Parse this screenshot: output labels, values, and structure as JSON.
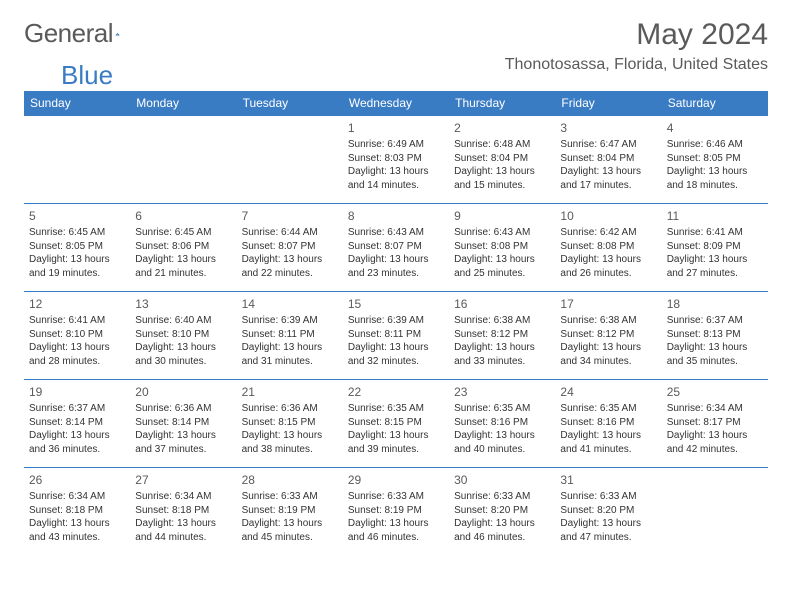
{
  "brand": {
    "part1": "General",
    "part2": "Blue"
  },
  "title": "May 2024",
  "location": "Thonotosassa, Florida, United States",
  "colors": {
    "header_bg": "#3a7cc4",
    "header_text": "#ffffff",
    "text": "#333333",
    "muted": "#5a5a5a",
    "border": "#3a7cc4",
    "background": "#ffffff"
  },
  "day_headers": [
    "Sunday",
    "Monday",
    "Tuesday",
    "Wednesday",
    "Thursday",
    "Friday",
    "Saturday"
  ],
  "weeks": [
    [
      null,
      null,
      null,
      {
        "n": "1",
        "sr": "6:49 AM",
        "ss": "8:03 PM",
        "dl": "13 hours and 14 minutes."
      },
      {
        "n": "2",
        "sr": "6:48 AM",
        "ss": "8:04 PM",
        "dl": "13 hours and 15 minutes."
      },
      {
        "n": "3",
        "sr": "6:47 AM",
        "ss": "8:04 PM",
        "dl": "13 hours and 17 minutes."
      },
      {
        "n": "4",
        "sr": "6:46 AM",
        "ss": "8:05 PM",
        "dl": "13 hours and 18 minutes."
      }
    ],
    [
      {
        "n": "5",
        "sr": "6:45 AM",
        "ss": "8:05 PM",
        "dl": "13 hours and 19 minutes."
      },
      {
        "n": "6",
        "sr": "6:45 AM",
        "ss": "8:06 PM",
        "dl": "13 hours and 21 minutes."
      },
      {
        "n": "7",
        "sr": "6:44 AM",
        "ss": "8:07 PM",
        "dl": "13 hours and 22 minutes."
      },
      {
        "n": "8",
        "sr": "6:43 AM",
        "ss": "8:07 PM",
        "dl": "13 hours and 23 minutes."
      },
      {
        "n": "9",
        "sr": "6:43 AM",
        "ss": "8:08 PM",
        "dl": "13 hours and 25 minutes."
      },
      {
        "n": "10",
        "sr": "6:42 AM",
        "ss": "8:08 PM",
        "dl": "13 hours and 26 minutes."
      },
      {
        "n": "11",
        "sr": "6:41 AM",
        "ss": "8:09 PM",
        "dl": "13 hours and 27 minutes."
      }
    ],
    [
      {
        "n": "12",
        "sr": "6:41 AM",
        "ss": "8:10 PM",
        "dl": "13 hours and 28 minutes."
      },
      {
        "n": "13",
        "sr": "6:40 AM",
        "ss": "8:10 PM",
        "dl": "13 hours and 30 minutes."
      },
      {
        "n": "14",
        "sr": "6:39 AM",
        "ss": "8:11 PM",
        "dl": "13 hours and 31 minutes."
      },
      {
        "n": "15",
        "sr": "6:39 AM",
        "ss": "8:11 PM",
        "dl": "13 hours and 32 minutes."
      },
      {
        "n": "16",
        "sr": "6:38 AM",
        "ss": "8:12 PM",
        "dl": "13 hours and 33 minutes."
      },
      {
        "n": "17",
        "sr": "6:38 AM",
        "ss": "8:12 PM",
        "dl": "13 hours and 34 minutes."
      },
      {
        "n": "18",
        "sr": "6:37 AM",
        "ss": "8:13 PM",
        "dl": "13 hours and 35 minutes."
      }
    ],
    [
      {
        "n": "19",
        "sr": "6:37 AM",
        "ss": "8:14 PM",
        "dl": "13 hours and 36 minutes."
      },
      {
        "n": "20",
        "sr": "6:36 AM",
        "ss": "8:14 PM",
        "dl": "13 hours and 37 minutes."
      },
      {
        "n": "21",
        "sr": "6:36 AM",
        "ss": "8:15 PM",
        "dl": "13 hours and 38 minutes."
      },
      {
        "n": "22",
        "sr": "6:35 AM",
        "ss": "8:15 PM",
        "dl": "13 hours and 39 minutes."
      },
      {
        "n": "23",
        "sr": "6:35 AM",
        "ss": "8:16 PM",
        "dl": "13 hours and 40 minutes."
      },
      {
        "n": "24",
        "sr": "6:35 AM",
        "ss": "8:16 PM",
        "dl": "13 hours and 41 minutes."
      },
      {
        "n": "25",
        "sr": "6:34 AM",
        "ss": "8:17 PM",
        "dl": "13 hours and 42 minutes."
      }
    ],
    [
      {
        "n": "26",
        "sr": "6:34 AM",
        "ss": "8:18 PM",
        "dl": "13 hours and 43 minutes."
      },
      {
        "n": "27",
        "sr": "6:34 AM",
        "ss": "8:18 PM",
        "dl": "13 hours and 44 minutes."
      },
      {
        "n": "28",
        "sr": "6:33 AM",
        "ss": "8:19 PM",
        "dl": "13 hours and 45 minutes."
      },
      {
        "n": "29",
        "sr": "6:33 AM",
        "ss": "8:19 PM",
        "dl": "13 hours and 46 minutes."
      },
      {
        "n": "30",
        "sr": "6:33 AM",
        "ss": "8:20 PM",
        "dl": "13 hours and 46 minutes."
      },
      {
        "n": "31",
        "sr": "6:33 AM",
        "ss": "8:20 PM",
        "dl": "13 hours and 47 minutes."
      },
      null
    ]
  ],
  "labels": {
    "sunrise": "Sunrise:",
    "sunset": "Sunset:",
    "daylight": "Daylight:"
  },
  "layout": {
    "cols": 7,
    "cell_font_size": 10,
    "header_font_size": 12
  }
}
